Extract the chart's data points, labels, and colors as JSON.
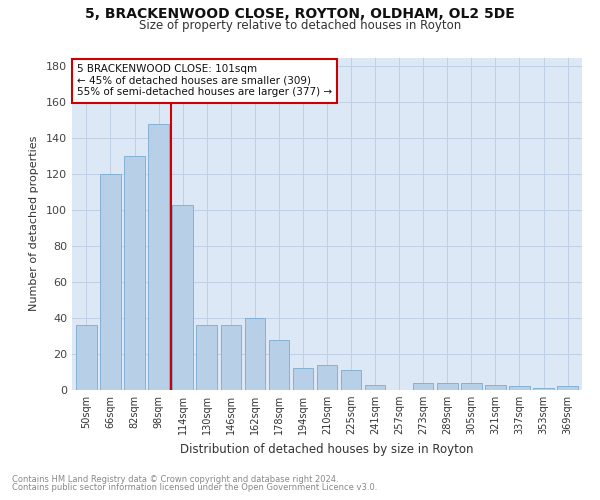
{
  "title": "5, BRACKENWOOD CLOSE, ROYTON, OLDHAM, OL2 5DE",
  "subtitle": "Size of property relative to detached houses in Royton",
  "xlabel": "Distribution of detached houses by size in Royton",
  "ylabel": "Number of detached properties",
  "footnote1": "Contains HM Land Registry data © Crown copyright and database right 2024.",
  "footnote2": "Contains public sector information licensed under the Open Government Licence v3.0.",
  "categories": [
    "50sqm",
    "66sqm",
    "82sqm",
    "98sqm",
    "114sqm",
    "130sqm",
    "146sqm",
    "162sqm",
    "178sqm",
    "194sqm",
    "210sqm",
    "225sqm",
    "241sqm",
    "257sqm",
    "273sqm",
    "289sqm",
    "305sqm",
    "321sqm",
    "337sqm",
    "353sqm",
    "369sqm"
  ],
  "values": [
    36,
    120,
    130,
    148,
    103,
    36,
    36,
    40,
    28,
    12,
    14,
    11,
    3,
    0,
    4,
    4,
    4,
    3,
    2,
    1,
    2
  ],
  "bar_color": "#b8cfe8",
  "bar_edge_color": "#7aaad0",
  "vline_x_index": 3.5,
  "vline_color": "#cc0000",
  "annotation_text": "5 BRACKENWOOD CLOSE: 101sqm\n← 45% of detached houses are smaller (309)\n55% of semi-detached houses are larger (377) →",
  "annotation_box_facecolor": "#ffffff",
  "annotation_box_edge": "#cc0000",
  "fig_bg_color": "#ffffff",
  "plot_bg_color": "#dce8f5",
  "ylim": [
    0,
    185
  ],
  "yticks": [
    0,
    20,
    40,
    60,
    80,
    100,
    120,
    140,
    160,
    180
  ]
}
